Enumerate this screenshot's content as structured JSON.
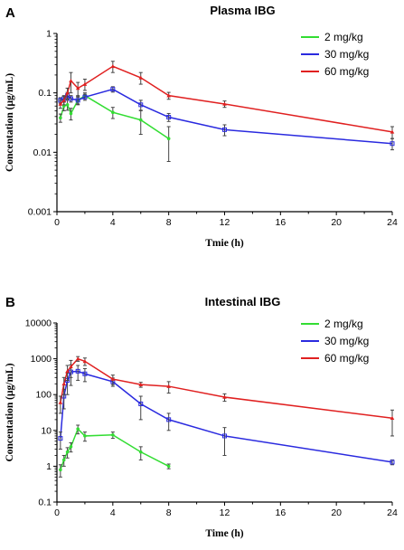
{
  "chart_data": [
    {
      "panel": "A",
      "type": "line",
      "title": "Plasma IBG",
      "xlabel": "Tmie (h)",
      "ylabel": "Concentation (μg/mL)",
      "xlim": [
        0,
        24
      ],
      "ylim": [
        0.001,
        1
      ],
      "yscale": "log",
      "xticks": [
        0,
        4,
        8,
        12,
        16,
        20,
        24
      ],
      "yticks": [
        0.001,
        0.01,
        0.1,
        1
      ],
      "ytick_labels": [
        "0.001",
        "0.01",
        "0.1",
        "1"
      ],
      "legend": "top-right",
      "grid": false,
      "series": [
        {
          "name": "2 mg/kg",
          "color": "#33dd33",
          "x": [
            0.25,
            0.5,
            0.75,
            1,
            1.5,
            2,
            4,
            6,
            8
          ],
          "y": [
            0.038,
            0.06,
            0.063,
            0.045,
            0.075,
            0.09,
            0.047,
            0.035,
            0.017
          ],
          "err": [
            0.006,
            0.01,
            0.012,
            0.01,
            0.012,
            0.01,
            0.01,
            0.015,
            0.01
          ]
        },
        {
          "name": "30 mg/kg",
          "color": "#2a2adf",
          "x": [
            0.25,
            0.5,
            0.75,
            1,
            1.5,
            2,
            4,
            6,
            8,
            12,
            24
          ],
          "y": [
            0.075,
            0.08,
            0.09,
            0.08,
            0.075,
            0.085,
            0.115,
            0.063,
            0.039,
            0.024,
            0.014
          ],
          "err": [
            0.008,
            0.01,
            0.012,
            0.01,
            0.01,
            0.01,
            0.012,
            0.012,
            0.006,
            0.005,
            0.003
          ]
        },
        {
          "name": "60 mg/kg",
          "color": "#e02020",
          "x": [
            0.25,
            0.5,
            0.75,
            1,
            1.5,
            2,
            4,
            6,
            8,
            12,
            24
          ],
          "y": [
            0.065,
            0.075,
            0.1,
            0.16,
            0.12,
            0.14,
            0.28,
            0.18,
            0.09,
            0.065,
            0.022
          ],
          "err": [
            0.01,
            0.012,
            0.02,
            0.06,
            0.03,
            0.03,
            0.06,
            0.04,
            0.012,
            0.008,
            0.005
          ]
        }
      ]
    },
    {
      "panel": "B",
      "type": "line",
      "title": "Intestinal IBG",
      "xlabel": "Time (h)",
      "ylabel": "Concentation (μg/mL)",
      "xlim": [
        0,
        24
      ],
      "ylim": [
        0.1,
        10000
      ],
      "yscale": "log",
      "xticks": [
        0,
        4,
        8,
        12,
        16,
        20,
        24
      ],
      "yticks": [
        0.1,
        1,
        10,
        100,
        1000,
        10000
      ],
      "ytick_labels": [
        "0.1",
        "1",
        "10",
        "100",
        "1000",
        "10000"
      ],
      "legend": "top-right",
      "grid": false,
      "series": [
        {
          "name": "2 mg/kg",
          "color": "#33dd33",
          "x": [
            0.25,
            0.5,
            0.75,
            1,
            1.5,
            2,
            4,
            6,
            8
          ],
          "y": [
            0.8,
            1.5,
            2.5,
            3.5,
            11,
            7,
            7.5,
            2.5,
            1.0
          ],
          "err": [
            0.3,
            0.5,
            0.8,
            1.0,
            3,
            2,
            1.5,
            1.0,
            0.15
          ]
        },
        {
          "name": "30 mg/kg",
          "color": "#2a2adf",
          "x": [
            0.25,
            0.5,
            0.75,
            1,
            1.5,
            2,
            4,
            6,
            8,
            12,
            24
          ],
          "y": [
            6,
            90,
            250,
            430,
            450,
            380,
            230,
            55,
            20,
            7,
            1.3
          ],
          "err": [
            3,
            50,
            150,
            250,
            200,
            150,
            60,
            35,
            10,
            5,
            0.2
          ]
        },
        {
          "name": "60 mg/kg",
          "color": "#e02020",
          "x": [
            0.25,
            0.5,
            0.75,
            1,
            1.5,
            2,
            4,
            6,
            8,
            12,
            24
          ],
          "y": [
            60,
            200,
            450,
            600,
            1000,
            850,
            270,
            190,
            170,
            85,
            22
          ],
          "err": [
            30,
            100,
            200,
            300,
            150,
            200,
            80,
            30,
            60,
            20,
            15
          ]
        }
      ]
    }
  ]
}
